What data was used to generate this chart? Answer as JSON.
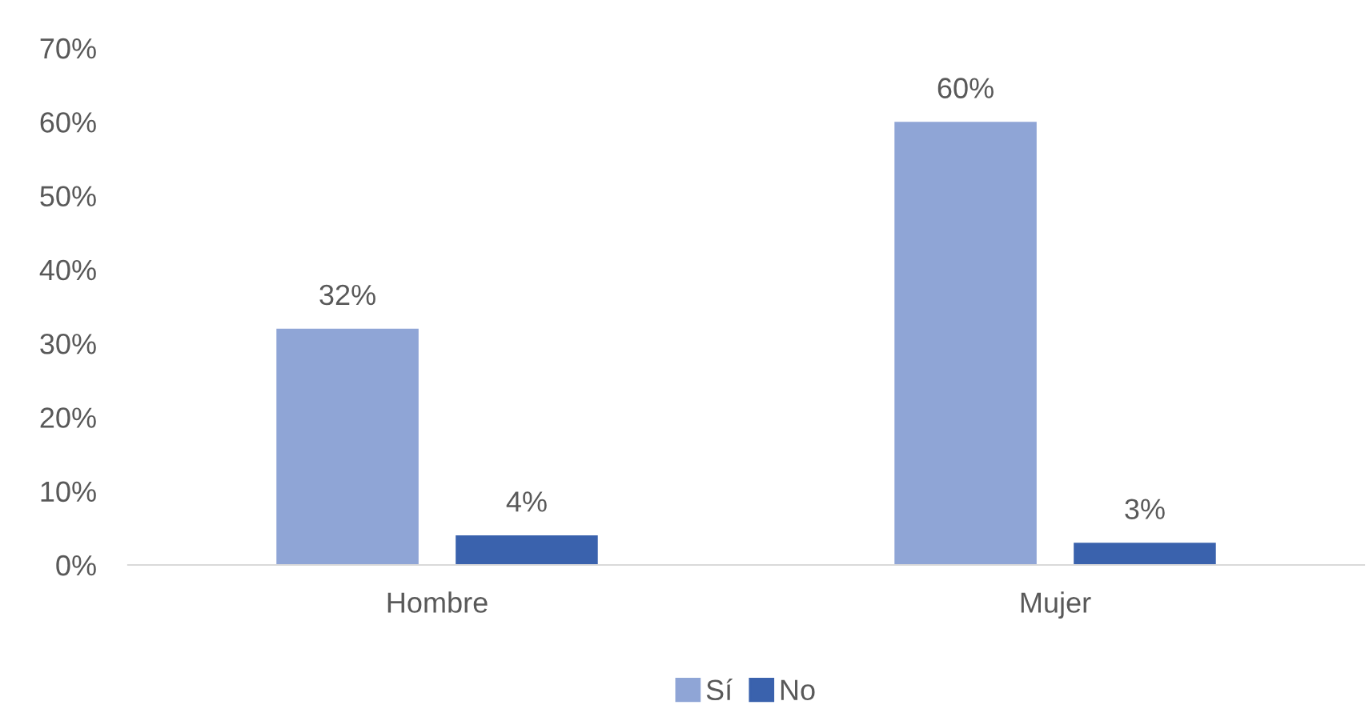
{
  "chart_data": {
    "type": "bar",
    "categories": [
      "Hombre",
      "Mujer"
    ],
    "series": [
      {
        "name": "Sí",
        "color": "#8fa5d6",
        "values": [
          32,
          60
        ],
        "value_labels": [
          "32%",
          "60%"
        ]
      },
      {
        "name": "No",
        "color": "#3a62ad",
        "values": [
          4,
          3
        ],
        "value_labels": [
          "4%",
          "3%"
        ]
      }
    ],
    "ylim": [
      0,
      70
    ],
    "yticks": [
      {
        "value": 0,
        "label": "0%"
      },
      {
        "value": 10,
        "label": "10%"
      },
      {
        "value": 20,
        "label": "20%"
      },
      {
        "value": 30,
        "label": "30%"
      },
      {
        "value": 40,
        "label": "40%"
      },
      {
        "value": 50,
        "label": "50%"
      },
      {
        "value": 60,
        "label": "60%"
      },
      {
        "value": 70,
        "label": "70%"
      }
    ],
    "grid": false,
    "legend": "bottom"
  }
}
